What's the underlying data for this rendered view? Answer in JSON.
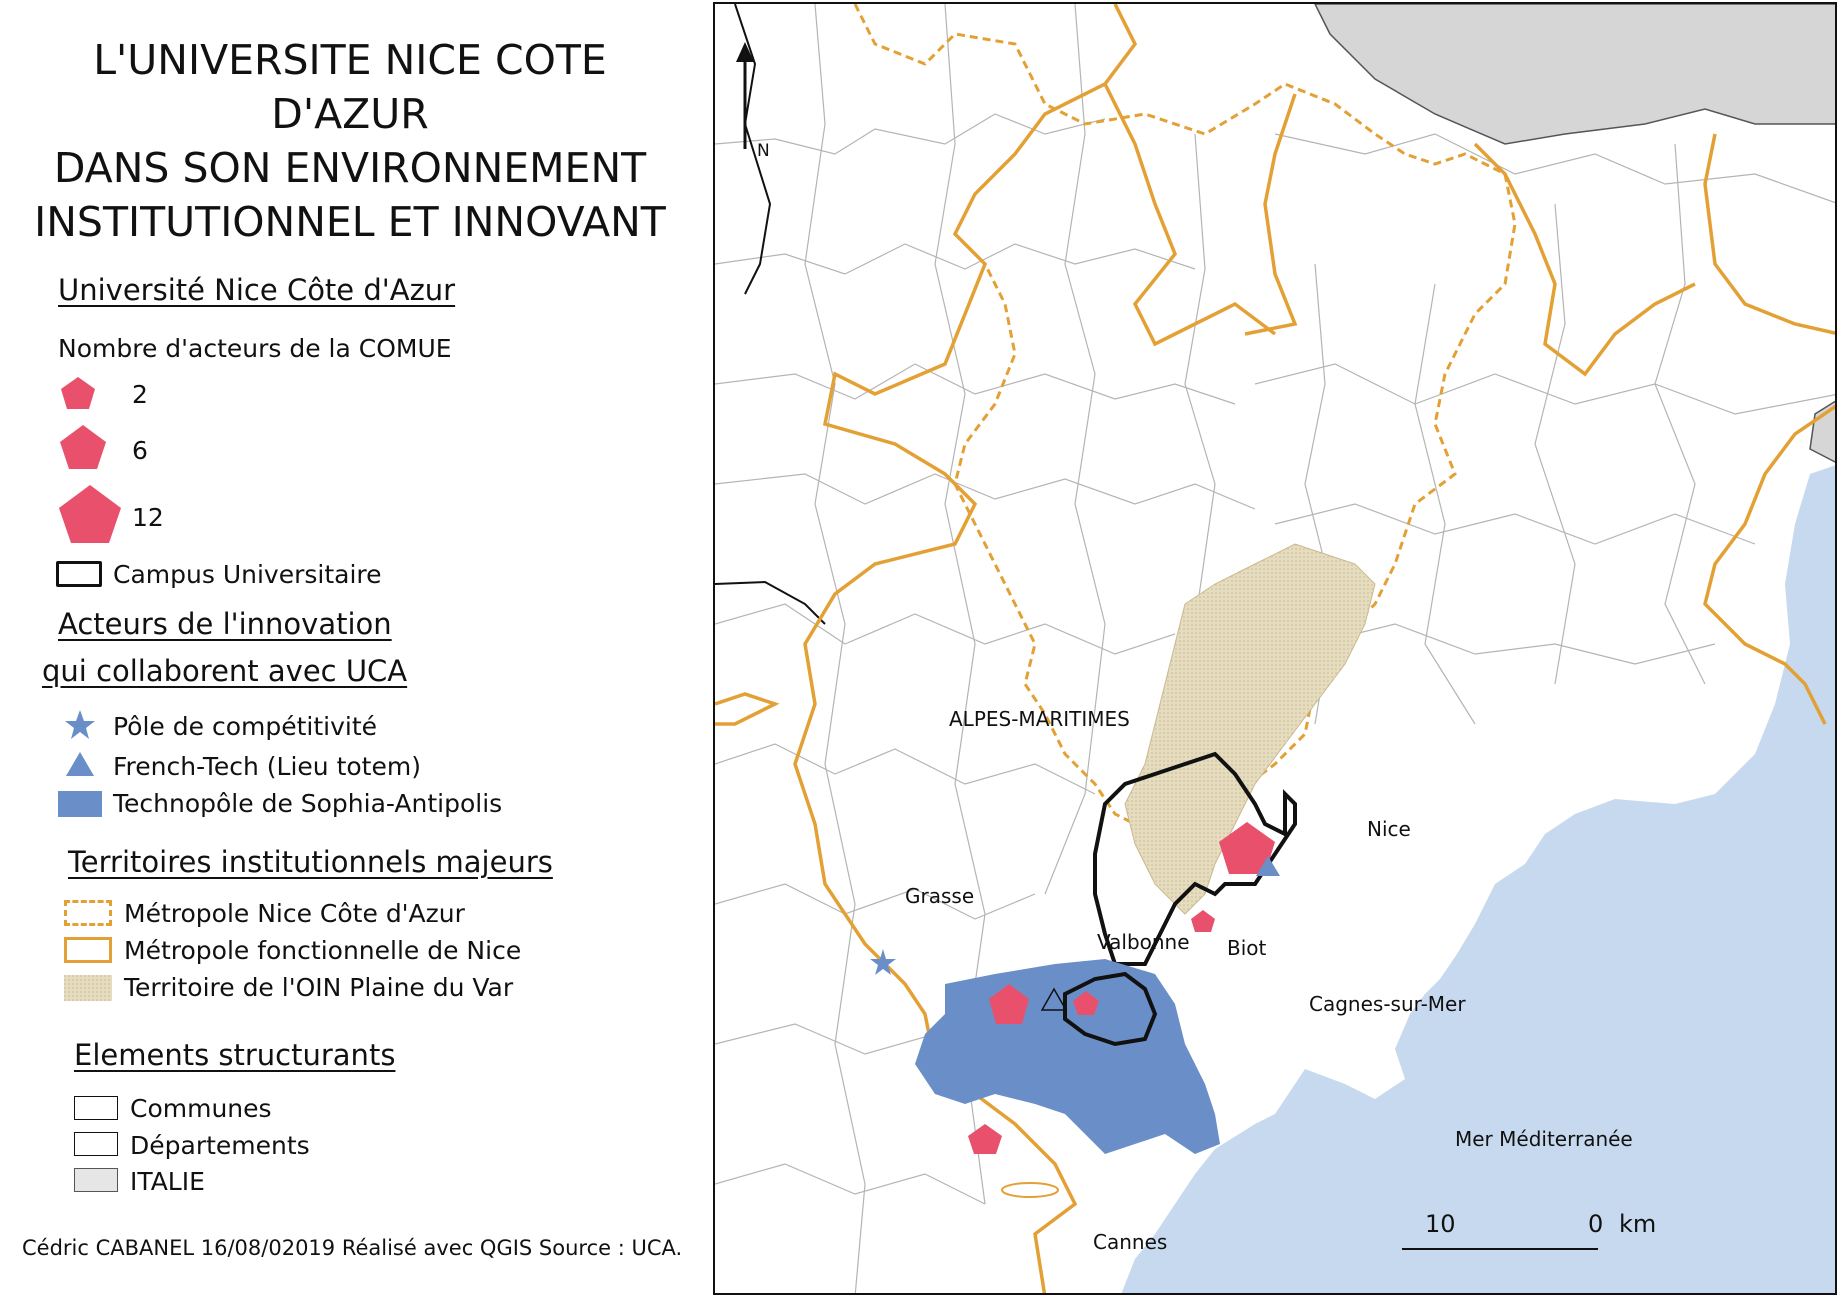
{
  "title": {
    "line1": "L'UNIVERSITE NICE COTE",
    "line2": "D'AZUR",
    "line3": "DANS SON ENVIRONNEMENT",
    "line4": "INSTITUTIONNEL ET INNOVANT"
  },
  "legend": {
    "uca": {
      "heading": "Université Nice Côte d'Azur",
      "count_label": "Nombre d'acteurs de la COMUE",
      "sizes": [
        "2",
        "6",
        "12"
      ],
      "campus": "Campus Universitaire"
    },
    "innovation": {
      "heading_line1": "Acteurs de l'innovation",
      "heading_line2": "qui collaborent avec UCA",
      "items": [
        "Pôle de compétitivité",
        "French-Tech (Lieu totem)",
        "Technopôle de Sophia-Antipolis"
      ]
    },
    "territories": {
      "heading": "Territoires institutionnels majeurs",
      "items": [
        "Métropole Nice Côte d'Azur",
        "Métropole fonctionnelle de Nice",
        "Territoire de l'OIN Plaine du Var"
      ]
    },
    "structure": {
      "heading": "Elements structurants",
      "items": [
        "Communes",
        "Départements",
        "ITALIE"
      ]
    }
  },
  "credit": "Cédric CABANEL   16/08/02019 Réalisé avec QGIS   Source : UCA.",
  "map": {
    "north_label": "N",
    "labels": {
      "alpes_maritimes": "ALPES-MARITIMES",
      "nice": "Nice",
      "grasse": "Grasse",
      "valbonne": "Valbonne",
      "biot": "Biot",
      "cagnes": "Cagnes-sur-Mer",
      "mer": "Mer Méditerranée",
      "cannes": "Cannes"
    },
    "scale": {
      "left": "10",
      "right": "0",
      "unit": "km"
    }
  },
  "colors": {
    "pentagon": "#e8506c",
    "innovation_blue": "#6a8fc8",
    "sea": "#c6d9ee",
    "italy": "#d6d6d6",
    "metropole_orange": "#e3a034",
    "oin_fill": "#e6dcc0"
  }
}
